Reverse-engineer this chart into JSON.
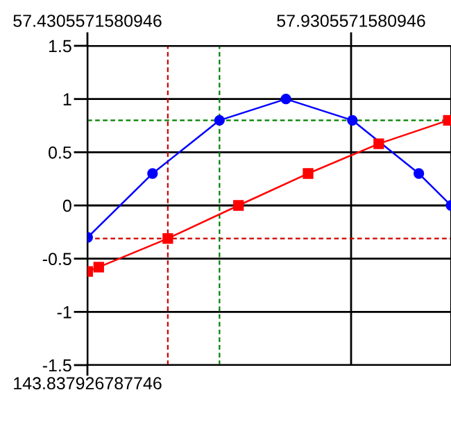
{
  "chart_data": {
    "type": "line",
    "series": [
      {
        "color": "#0000ff",
        "marker": "circle",
        "x": [
          57.431,
          57.554,
          57.681,
          57.807,
          57.933,
          58.059,
          58.12
        ],
        "values": [
          -0.3,
          0.3,
          0.8,
          1.0,
          0.8,
          0.3,
          0.0
        ]
      },
      {
        "color": "#ff0000",
        "marker": "square",
        "x": [
          57.431,
          57.452,
          57.583,
          57.717,
          57.849,
          57.983,
          58.115
        ],
        "values": [
          -0.62,
          -0.58,
          -0.31,
          0,
          0.3,
          0.58,
          0.8
        ]
      }
    ],
    "xlim": [
      57.4305571580946,
      58.12
    ],
    "xticks": [
      57.4305571580946,
      57.9305571580946
    ],
    "ylim": [
      -1.5,
      1.5
    ],
    "yticks": [
      -1.5,
      -1,
      -0.5,
      0,
      0.5,
      1,
      1.5
    ],
    "grid": true,
    "line_style": "solid",
    "ref_lines": [
      {
        "axis": "x",
        "value": 57.583,
        "color": "#cc0000",
        "line_style": "dashed"
      },
      {
        "axis": "y",
        "value": -0.31,
        "color": "#cc0000",
        "line_style": "dashed"
      },
      {
        "axis": "x",
        "value": 57.681,
        "color": "#008000",
        "line_style": "dashed"
      },
      {
        "axis": "y",
        "value": 0.8,
        "color": "#008000",
        "line_style": "dashed"
      }
    ],
    "annotations": [
      "143.837926787746"
    ]
  }
}
